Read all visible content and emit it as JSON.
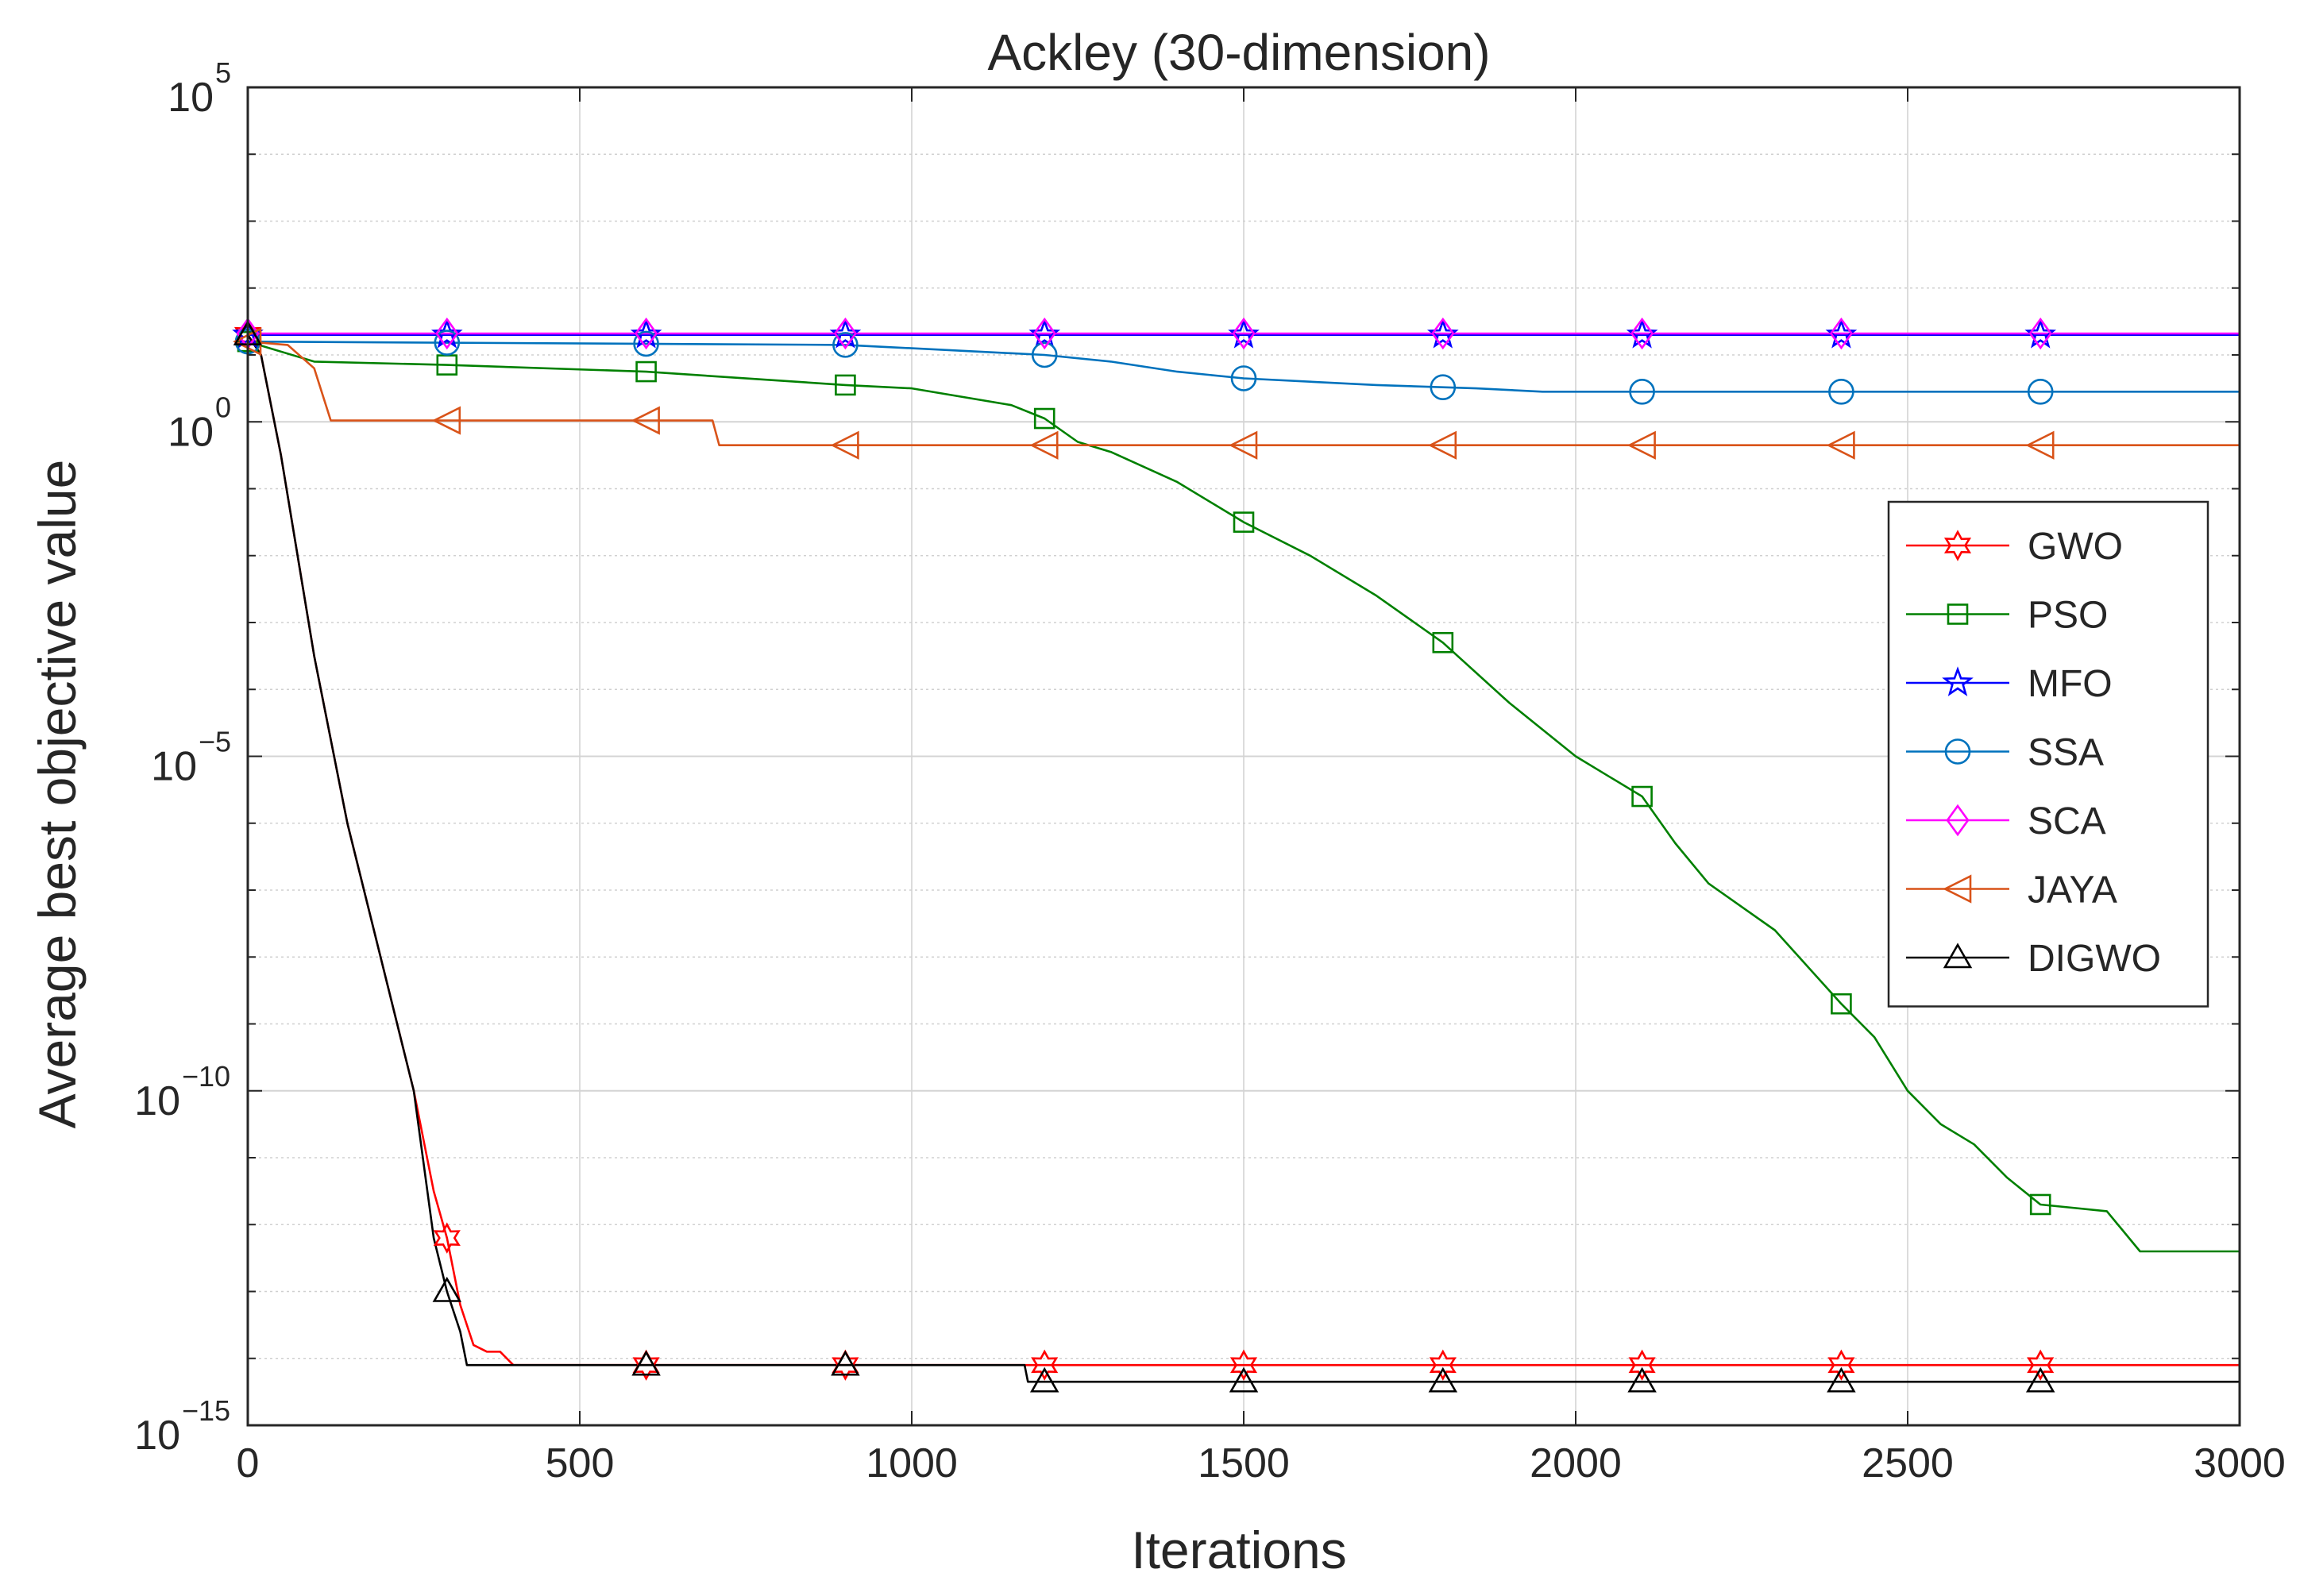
{
  "chart_data": {
    "type": "line",
    "title": "Ackley (30-dimension)",
    "xlabel": "Iterations",
    "ylabel": "Average best objective value",
    "xlim": [
      0,
      3000
    ],
    "ylim_log10": [
      -15,
      5
    ],
    "yscale": "log",
    "grid": true,
    "legend_position": "right-middle",
    "x_ticks": [
      {
        "value": 0,
        "label": "0"
      },
      {
        "value": 500,
        "label": "500"
      },
      {
        "value": 1000,
        "label": "1000"
      },
      {
        "value": 1500,
        "label": "1500"
      },
      {
        "value": 2000,
        "label": "2000"
      },
      {
        "value": 2500,
        "label": "2500"
      },
      {
        "value": 3000,
        "label": "3000"
      }
    ],
    "y_ticks": [
      {
        "exp": 5,
        "base": "10",
        "sup": "5"
      },
      {
        "exp": 0,
        "base": "10",
        "sup": "0"
      },
      {
        "exp": -5,
        "base": "10",
        "sup": "−5"
      },
      {
        "exp": -10,
        "base": "10",
        "sup": "−10"
      },
      {
        "exp": -15,
        "base": "10",
        "sup": "−15"
      }
    ],
    "series": [
      {
        "name": "GWO",
        "color": "#ff0000",
        "marker": "hexagram",
        "points": [
          [
            0,
            1.3
          ],
          [
            20,
            1.0
          ],
          [
            50,
            -0.5
          ],
          [
            100,
            -3.5
          ],
          [
            150,
            -6
          ],
          [
            200,
            -8
          ],
          [
            250,
            -10
          ],
          [
            280,
            -11.5
          ],
          [
            300,
            -12.2
          ],
          [
            320,
            -13.2
          ],
          [
            340,
            -13.8
          ],
          [
            360,
            -13.9
          ],
          [
            380,
            -13.9
          ],
          [
            400,
            -14.1
          ],
          [
            3000,
            -14.1
          ]
        ],
        "markers_x": [
          300,
          600,
          900,
          1200,
          1500,
          1800,
          2100,
          2400,
          2700
        ]
      },
      {
        "name": "PSO",
        "color": "#008000",
        "marker": "square",
        "points": [
          [
            0,
            1.2
          ],
          [
            100,
            0.9
          ],
          [
            300,
            0.85
          ],
          [
            600,
            0.75
          ],
          [
            900,
            0.55
          ],
          [
            1000,
            0.5
          ],
          [
            1150,
            0.25
          ],
          [
            1200,
            0.05
          ],
          [
            1250,
            -0.3
          ],
          [
            1300,
            -0.45
          ],
          [
            1400,
            -0.9
          ],
          [
            1500,
            -1.5
          ],
          [
            1600,
            -2
          ],
          [
            1700,
            -2.6
          ],
          [
            1800,
            -3.3
          ],
          [
            1900,
            -4.2
          ],
          [
            2000,
            -5
          ],
          [
            2050,
            -5.3
          ],
          [
            2100,
            -5.6
          ],
          [
            2150,
            -6.3
          ],
          [
            2200,
            -6.9
          ],
          [
            2300,
            -7.6
          ],
          [
            2400,
            -8.7
          ],
          [
            2450,
            -9.2
          ],
          [
            2500,
            -10
          ],
          [
            2550,
            -10.5
          ],
          [
            2600,
            -10.8
          ],
          [
            2650,
            -11.3
          ],
          [
            2700,
            -11.7
          ],
          [
            2800,
            -11.8
          ],
          [
            2850,
            -12.4
          ],
          [
            3000,
            -12.4
          ]
        ],
        "markers_x": [
          300,
          600,
          900,
          1200,
          1500,
          1800,
          2100,
          2400,
          2700
        ]
      },
      {
        "name": "MFO",
        "color": "#0000ff",
        "marker": "pentagram",
        "points": [
          [
            0,
            1.3
          ],
          [
            3000,
            1.3
          ]
        ],
        "markers_x": [
          300,
          600,
          900,
          1200,
          1500,
          1800,
          2100,
          2400,
          2700
        ]
      },
      {
        "name": "SSA",
        "color": "#0072bd",
        "marker": "circle",
        "points": [
          [
            0,
            1.2
          ],
          [
            900,
            1.15
          ],
          [
            1100,
            1.05
          ],
          [
            1200,
            1.0
          ],
          [
            1300,
            0.9
          ],
          [
            1400,
            0.75
          ],
          [
            1500,
            0.65
          ],
          [
            1700,
            0.55
          ],
          [
            1850,
            0.5
          ],
          [
            1950,
            0.45
          ],
          [
            2100,
            0.45
          ],
          [
            3000,
            0.45
          ]
        ],
        "markers_x": [
          300,
          600,
          900,
          1200,
          1500,
          1800,
          2100,
          2400,
          2700
        ]
      },
      {
        "name": "SCA",
        "color": "#ff00ff",
        "marker": "diamond",
        "points": [
          [
            0,
            1.32
          ],
          [
            3000,
            1.32
          ]
        ],
        "markers_x": [
          300,
          600,
          900,
          1200,
          1500,
          1800,
          2100,
          2400,
          2700
        ]
      },
      {
        "name": "JAYA",
        "color": "#d95319",
        "marker": "triangle-left",
        "points": [
          [
            0,
            1.2
          ],
          [
            60,
            1.15
          ],
          [
            100,
            0.8
          ],
          [
            125,
            0.02
          ],
          [
            600,
            0.02
          ],
          [
            700,
            0.02
          ],
          [
            710,
            -0.35
          ],
          [
            3000,
            -0.35
          ]
        ],
        "markers_x": [
          300,
          600,
          900,
          1200,
          1500,
          1800,
          2100,
          2400,
          2700
        ]
      },
      {
        "name": "DIGWO",
        "color": "#000000",
        "marker": "triangle-up",
        "points": [
          [
            0,
            1.3
          ],
          [
            20,
            1.0
          ],
          [
            50,
            -0.5
          ],
          [
            100,
            -3.5
          ],
          [
            150,
            -6
          ],
          [
            200,
            -8
          ],
          [
            250,
            -10
          ],
          [
            280,
            -12.2
          ],
          [
            300,
            -13.0
          ],
          [
            320,
            -13.6
          ],
          [
            330,
            -14.1
          ],
          [
            1170,
            -14.1
          ],
          [
            1175,
            -14.35
          ],
          [
            3000,
            -14.35
          ]
        ],
        "markers_x": [
          300,
          600,
          900,
          1200,
          1500,
          1800,
          2100,
          2400,
          2700
        ]
      }
    ]
  }
}
